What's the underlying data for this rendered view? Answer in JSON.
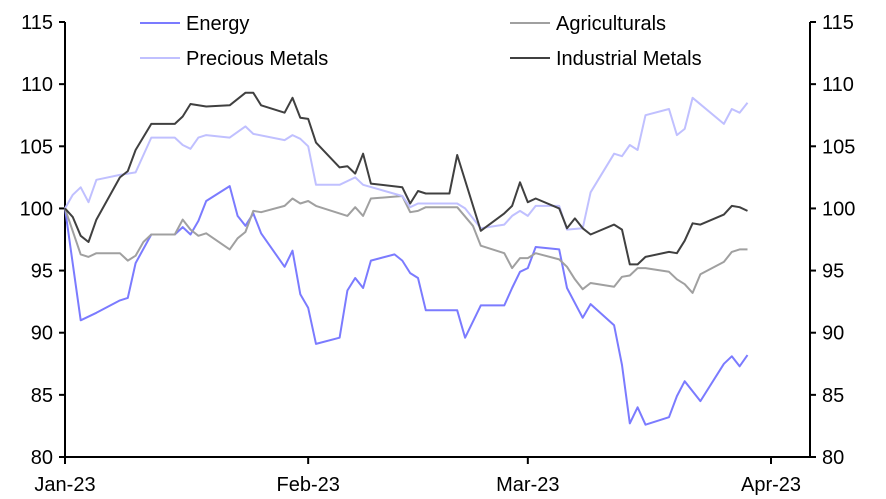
{
  "chart_data": {
    "type": "line",
    "title": "",
    "xlabel": "",
    "ylabel": "",
    "ylim": [
      80,
      115
    ],
    "yticks": [
      80,
      85,
      90,
      95,
      100,
      105,
      110,
      115
    ],
    "ytick_labels": [
      "80",
      "85",
      "90",
      "95",
      "100",
      "105",
      "110",
      "115"
    ],
    "x_unit": "days since 1 Jan 2023",
    "xlim": [
      0,
      90
    ],
    "xticks": [
      0,
      31,
      59,
      90
    ],
    "xtick_labels": [
      "Jan-23",
      "Feb-23",
      "Mar-23",
      "Apr-23"
    ],
    "legend_position": "top",
    "grid": false,
    "series": [
      {
        "name": "Energy",
        "color": "#7b7bff",
        "x": [
          0,
          2,
          4,
          7,
          8,
          9,
          11,
          14,
          15,
          16,
          17,
          18,
          21,
          22,
          23,
          24,
          25,
          28,
          29,
          30,
          31,
          32,
          35,
          36,
          37,
          38,
          39,
          42,
          43,
          44,
          45,
          46,
          50,
          51,
          53,
          56,
          57,
          58,
          59,
          60,
          63,
          64,
          66,
          67,
          70,
          71,
          72,
          73,
          74,
          77,
          78,
          79,
          81,
          84,
          85,
          86,
          87
        ],
        "y": [
          100,
          91.0,
          91.6,
          92.6,
          92.8,
          95.6,
          97.9,
          97.9,
          98.5,
          97.9,
          99.0,
          100.6,
          101.8,
          99.4,
          98.6,
          99.6,
          98.0,
          95.3,
          96.6,
          93.1,
          92.0,
          89.1,
          89.6,
          93.4,
          94.4,
          93.6,
          95.8,
          96.3,
          95.8,
          94.8,
          94.4,
          91.8,
          91.8,
          89.6,
          92.2,
          92.2,
          93.6,
          94.9,
          95.2,
          96.9,
          96.7,
          93.6,
          91.2,
          92.3,
          90.6,
          87.4,
          82.7,
          84.0,
          82.6,
          83.2,
          84.9,
          86.1,
          84.5,
          87.5,
          88.1,
          87.3,
          88.2
        ]
      },
      {
        "name": "Agriculturals",
        "color": "#a0a0a0",
        "x": [
          0,
          2,
          3,
          4,
          7,
          8,
          9,
          10,
          11,
          14,
          15,
          16,
          17,
          18,
          21,
          22,
          23,
          24,
          25,
          28,
          29,
          30,
          31,
          32,
          36,
          37,
          38,
          39,
          43,
          44,
          45,
          46,
          50,
          52,
          53,
          56,
          57,
          58,
          59,
          60,
          63,
          64,
          65,
          66,
          67,
          70,
          71,
          72,
          73,
          74,
          77,
          78,
          79,
          80,
          81,
          84,
          85,
          86,
          87
        ],
        "y": [
          100,
          96.3,
          96.1,
          96.4,
          96.4,
          95.8,
          96.2,
          97.3,
          97.9,
          97.9,
          99.1,
          98.3,
          97.8,
          98.0,
          96.7,
          97.6,
          98.1,
          99.8,
          99.7,
          100.2,
          100.8,
          100.4,
          100.6,
          100.2,
          99.4,
          100.1,
          99.4,
          100.8,
          101.0,
          99.7,
          99.8,
          100.1,
          100.1,
          98.6,
          97.0,
          96.4,
          95.2,
          96.0,
          96.0,
          96.4,
          95.9,
          95.3,
          94.3,
          93.5,
          94.0,
          93.7,
          94.5,
          94.6,
          95.2,
          95.2,
          94.9,
          94.3,
          93.9,
          93.2,
          94.7,
          95.7,
          96.5,
          96.7,
          96.7
        ]
      },
      {
        "name": "Precious Metals",
        "color": "#c0c0ff",
        "x": [
          0,
          1,
          2,
          3,
          4,
          7,
          9,
          11,
          14,
          15,
          16,
          17,
          18,
          21,
          23,
          24,
          28,
          29,
          30,
          31,
          32,
          35,
          37,
          38,
          43,
          44,
          45,
          50,
          51,
          53,
          56,
          57,
          58,
          59,
          60,
          63,
          64,
          66,
          67,
          70,
          71,
          72,
          73,
          74,
          77,
          78,
          79,
          80,
          84,
          85,
          86,
          87
        ],
        "y": [
          100,
          101.1,
          101.7,
          100.5,
          102.3,
          102.7,
          102.9,
          105.7,
          105.7,
          105.1,
          104.8,
          105.7,
          105.9,
          105.7,
          106.6,
          106.0,
          105.5,
          105.9,
          105.6,
          105.0,
          101.9,
          101.9,
          102.5,
          101.9,
          101.0,
          100.1,
          100.4,
          100.4,
          100,
          98.4,
          98.7,
          99.4,
          99.8,
          99.4,
          100.2,
          100.2,
          98.3,
          98.4,
          101.3,
          104.4,
          104.2,
          105.1,
          104.7,
          107.5,
          108.0,
          105.9,
          106.4,
          108.9,
          106.8,
          108.0,
          107.7,
          108.5
        ]
      },
      {
        "name": "Industrial Metals",
        "color": "#404040",
        "x": [
          0,
          1,
          2,
          3,
          4,
          7,
          8,
          9,
          11,
          14,
          15,
          16,
          18,
          21,
          23,
          24,
          25,
          28,
          29,
          30,
          31,
          32,
          35,
          36,
          37,
          38,
          39,
          43,
          44,
          45,
          46,
          49,
          50,
          53,
          56,
          57,
          58,
          59,
          60,
          63,
          64,
          65,
          66,
          67,
          70,
          71,
          72,
          73,
          74,
          77,
          78,
          79,
          80,
          81,
          84,
          85,
          86,
          87
        ],
        "y": [
          100,
          99.3,
          97.8,
          97.3,
          99.1,
          102.5,
          103.0,
          104.7,
          106.8,
          106.8,
          107.4,
          108.4,
          108.2,
          108.3,
          109.3,
          109.3,
          108.3,
          107.7,
          108.9,
          107.3,
          107.2,
          105.3,
          103.3,
          103.4,
          102.8,
          104.4,
          102.0,
          101.7,
          100.4,
          101.4,
          101.2,
          101.2,
          104.3,
          98.2,
          99.6,
          100.2,
          102.1,
          100.5,
          100.8,
          100,
          98.4,
          99.2,
          98.4,
          97.9,
          98.7,
          98.3,
          95.5,
          95.5,
          96.1,
          96.5,
          96.4,
          97.4,
          98.8,
          98.7,
          99.5,
          100.2,
          100.1,
          99.8
        ]
      }
    ]
  }
}
